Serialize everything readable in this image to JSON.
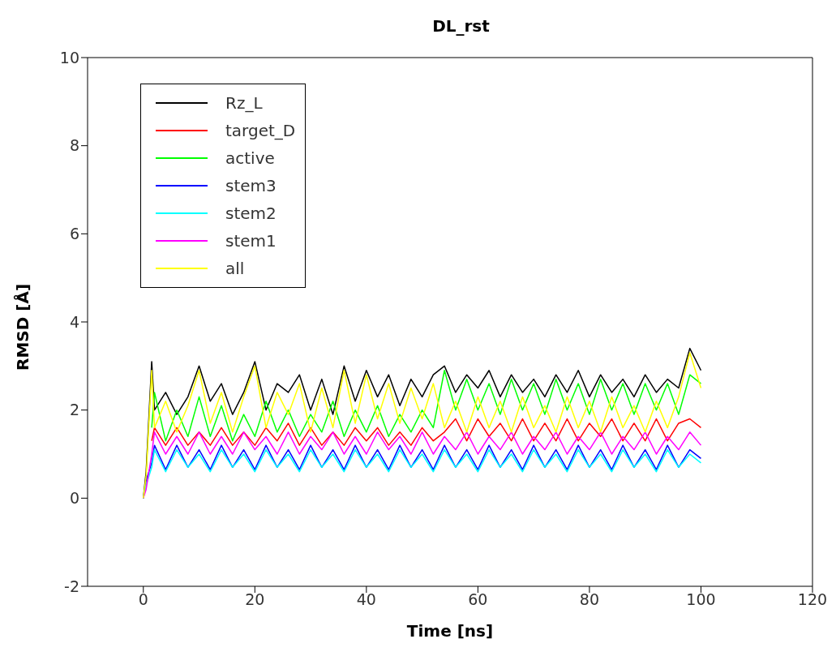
{
  "chart_data": {
    "type": "line",
    "title": "DL_rst",
    "xlabel": "Time [ns]",
    "ylabel": "RMSD [Å]",
    "x": [
      0,
      0.5,
      1.5,
      2,
      4,
      6,
      8,
      10,
      12,
      14,
      16,
      18,
      20,
      22,
      24,
      26,
      28,
      30,
      32,
      34,
      36,
      38,
      40,
      42,
      44,
      46,
      48,
      50,
      52,
      54,
      56,
      58,
      60,
      62,
      64,
      66,
      68,
      70,
      72,
      74,
      76,
      78,
      80,
      82,
      84,
      86,
      88,
      90,
      92,
      94,
      96,
      98,
      100
    ],
    "xlim": [
      -10,
      120
    ],
    "xticks": [
      0,
      20,
      40,
      60,
      80,
      100,
      120
    ],
    "ylim": [
      -2,
      10
    ],
    "yticks": [
      -2,
      0,
      2,
      4,
      6,
      8,
      10
    ],
    "grid": false,
    "legend": "top left",
    "marker": "none",
    "line_style": "solid",
    "series": [
      {
        "name": "Rz_L",
        "color": "#000000",
        "values": [
          0,
          0.6,
          3.1,
          2.0,
          2.4,
          1.9,
          2.3,
          3.0,
          2.2,
          2.6,
          1.9,
          2.4,
          3.1,
          2.0,
          2.6,
          2.4,
          2.8,
          2.0,
          2.7,
          1.9,
          3.0,
          2.2,
          2.9,
          2.3,
          2.8,
          2.1,
          2.7,
          2.3,
          2.8,
          3.0,
          2.4,
          2.8,
          2.5,
          2.9,
          2.3,
          2.8,
          2.4,
          2.7,
          2.3,
          2.8,
          2.4,
          2.9,
          2.3,
          2.8,
          2.4,
          2.7,
          2.3,
          2.8,
          2.4,
          2.7,
          2.5,
          3.4,
          2.9
        ]
      },
      {
        "name": "target_D",
        "color": "#ff0000",
        "values": [
          null,
          null,
          1.3,
          1.6,
          1.2,
          1.6,
          1.2,
          1.5,
          1.2,
          1.6,
          1.2,
          1.5,
          1.2,
          1.6,
          1.3,
          1.7,
          1.2,
          1.6,
          1.2,
          1.5,
          1.2,
          1.6,
          1.3,
          1.6,
          1.2,
          1.5,
          1.2,
          1.6,
          1.3,
          1.5,
          1.8,
          1.3,
          1.8,
          1.4,
          1.7,
          1.3,
          1.8,
          1.3,
          1.7,
          1.3,
          1.8,
          1.3,
          1.7,
          1.4,
          1.8,
          1.3,
          1.7,
          1.3,
          1.8,
          1.3,
          1.7,
          1.8,
          1.6
        ]
      },
      {
        "name": "active",
        "color": "#00ff00",
        "values": [
          null,
          null,
          1.6,
          2.4,
          1.3,
          2.0,
          1.4,
          2.3,
          1.4,
          2.1,
          1.3,
          1.9,
          1.4,
          2.2,
          1.5,
          2.0,
          1.4,
          1.9,
          1.5,
          2.2,
          1.4,
          2.0,
          1.5,
          2.1,
          1.4,
          1.9,
          1.5,
          2.0,
          1.6,
          2.9,
          2.0,
          2.7,
          2.0,
          2.6,
          1.9,
          2.7,
          2.0,
          2.6,
          1.9,
          2.7,
          2.0,
          2.6,
          1.9,
          2.7,
          2.0,
          2.6,
          1.9,
          2.6,
          2.0,
          2.6,
          1.9,
          2.8,
          2.6
        ]
      },
      {
        "name": "stem3",
        "color": "#0000ff",
        "values": [
          0,
          0.4,
          0.8,
          1.2,
          0.65,
          1.2,
          0.7,
          1.1,
          0.65,
          1.2,
          0.7,
          1.1,
          0.65,
          1.2,
          0.7,
          1.1,
          0.65,
          1.2,
          0.7,
          1.1,
          0.65,
          1.2,
          0.7,
          1.1,
          0.65,
          1.2,
          0.7,
          1.1,
          0.65,
          1.2,
          0.7,
          1.1,
          0.65,
          1.2,
          0.7,
          1.1,
          0.65,
          1.2,
          0.7,
          1.1,
          0.65,
          1.2,
          0.7,
          1.1,
          0.65,
          1.2,
          0.7,
          1.1,
          0.65,
          1.2,
          0.7,
          1.1,
          0.9
        ]
      },
      {
        "name": "stem2",
        "color": "#00ffff",
        "values": [
          0,
          0.3,
          0.7,
          1.1,
          0.6,
          1.1,
          0.7,
          1.0,
          0.6,
          1.1,
          0.7,
          1.0,
          0.6,
          1.1,
          0.7,
          1.0,
          0.6,
          1.1,
          0.7,
          1.0,
          0.6,
          1.1,
          0.7,
          1.0,
          0.6,
          1.1,
          0.7,
          1.0,
          0.6,
          1.1,
          0.7,
          1.0,
          0.6,
          1.1,
          0.7,
          1.0,
          0.6,
          1.1,
          0.7,
          1.0,
          0.6,
          1.1,
          0.7,
          1.0,
          0.6,
          1.1,
          0.7,
          1.0,
          0.6,
          1.1,
          0.7,
          1.0,
          0.8
        ]
      },
      {
        "name": "stem1",
        "color": "#ff00ff",
        "values": [
          0,
          0.2,
          1.0,
          1.5,
          1.0,
          1.4,
          1.0,
          1.5,
          1.0,
          1.4,
          1.0,
          1.5,
          1.1,
          1.4,
          1.0,
          1.5,
          1.0,
          1.4,
          1.1,
          1.5,
          1.0,
          1.4,
          1.0,
          1.5,
          1.1,
          1.4,
          1.0,
          1.5,
          1.0,
          1.4,
          1.1,
          1.5,
          1.0,
          1.4,
          1.1,
          1.5,
          1.0,
          1.4,
          1.1,
          1.5,
          1.0,
          1.4,
          1.1,
          1.5,
          1.0,
          1.4,
          1.1,
          1.5,
          1.0,
          1.4,
          1.1,
          1.5,
          1.2
        ]
      },
      {
        "name": "all",
        "color": "#ffff00",
        "values": [
          0,
          0.5,
          2.9,
          1.6,
          2.2,
          1.5,
          2.1,
          2.9,
          1.7,
          2.4,
          1.5,
          2.3,
          3.0,
          1.6,
          2.4,
          1.9,
          2.6,
          1.5,
          2.5,
          1.6,
          2.9,
          1.7,
          2.8,
          1.8,
          2.6,
          1.7,
          2.5,
          1.8,
          2.6,
          1.6,
          2.2,
          1.5,
          2.3,
          1.6,
          2.2,
          1.5,
          2.3,
          1.6,
          2.1,
          1.5,
          2.3,
          1.6,
          2.2,
          1.5,
          2.3,
          1.6,
          2.1,
          1.5,
          2.2,
          1.6,
          2.3,
          3.3,
          2.5
        ]
      }
    ]
  }
}
